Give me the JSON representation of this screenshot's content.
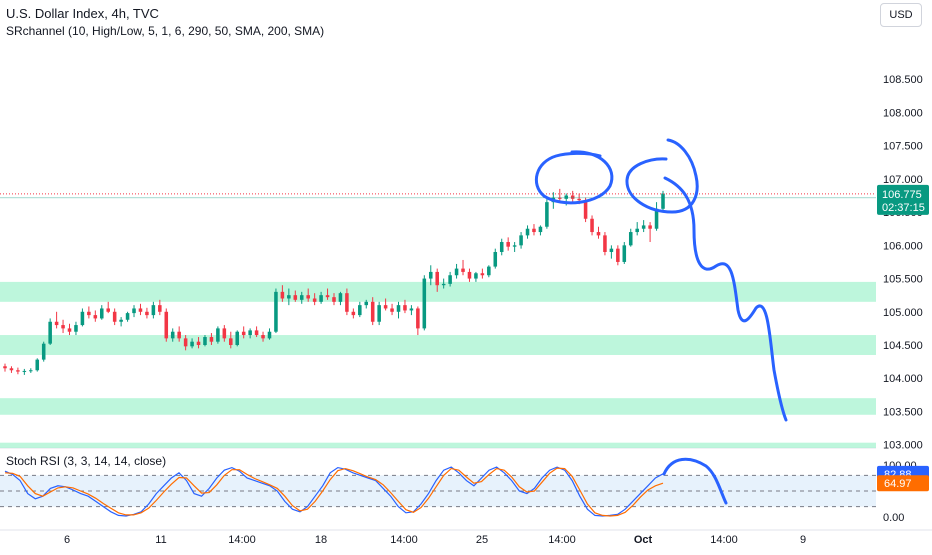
{
  "header": {
    "title": "U.S. Dollar Index, 4h, TVC",
    "indicator": "SRchannel (10, High/Low, 5, 1, 6, 290, 50, SMA, 200, SMA)",
    "currency": "USD"
  },
  "colors": {
    "up": "#089981",
    "down": "#f23645",
    "sr_zone": "#a7f3d0",
    "drawing": "#2962ff",
    "k_line": "#2962ff",
    "d_line": "#ff6d00",
    "stoch_band": "#e1effb"
  },
  "price_label": {
    "value": "106.775",
    "countdown": "02:37:15"
  },
  "stoch_labels": {
    "k": "82.88",
    "d": "64.97"
  },
  "chart_data": [
    {
      "type": "candlestick",
      "title": "U.S. Dollar Index, 4h, TVC",
      "ylim": [
        102.95,
        109.0
      ],
      "y_ticks": [
        "108.500",
        "108.000",
        "107.500",
        "107.000",
        "106.500",
        "106.000",
        "105.500",
        "105.000",
        "104.500",
        "104.000",
        "103.500",
        "103.000"
      ],
      "x_ticks": [
        "6",
        "11",
        "14:00",
        "18",
        "14:00",
        "25",
        "14:00",
        "Oct",
        "14:00",
        "9"
      ],
      "last_price": 106.775,
      "sr_zones": [
        [
          105.15,
          105.45
        ],
        [
          104.35,
          104.65
        ],
        [
          103.45,
          103.7
        ],
        [
          102.95,
          103.03
        ]
      ],
      "ohlc": [
        [
          104.18,
          104.22,
          104.1,
          104.15
        ],
        [
          104.15,
          104.18,
          104.08,
          104.12
        ],
        [
          104.12,
          104.16,
          104.06,
          104.1
        ],
        [
          104.1,
          104.14,
          104.05,
          104.11
        ],
        [
          104.11,
          104.15,
          104.08,
          104.12
        ],
        [
          104.12,
          104.3,
          104.1,
          104.28
        ],
        [
          104.28,
          104.55,
          104.25,
          104.52
        ],
        [
          104.52,
          104.9,
          104.5,
          104.85
        ],
        [
          104.85,
          105.0,
          104.75,
          104.8
        ],
        [
          104.8,
          104.88,
          104.68,
          104.75
        ],
        [
          104.75,
          104.82,
          104.65,
          104.7
        ],
        [
          104.7,
          104.85,
          104.65,
          104.8
        ],
        [
          104.8,
          105.05,
          104.78,
          105.0
        ],
        [
          105.0,
          105.08,
          104.9,
          104.95
        ],
        [
          104.95,
          105.02,
          104.85,
          104.9
        ],
        [
          104.9,
          105.1,
          104.88,
          105.05
        ],
        [
          105.05,
          105.15,
          104.98,
          105.0
        ],
        [
          105.0,
          105.05,
          104.8,
          104.85
        ],
        [
          104.85,
          104.92,
          104.78,
          104.88
        ],
        [
          104.88,
          105.0,
          104.85,
          104.98
        ],
        [
          104.98,
          105.1,
          104.92,
          105.05
        ],
        [
          105.05,
          105.12,
          104.95,
          105.0
        ],
        [
          105.0,
          105.06,
          104.9,
          104.95
        ],
        [
          104.95,
          105.15,
          104.9,
          105.1
        ],
        [
          105.1,
          105.18,
          104.95,
          105.0
        ],
        [
          105.0,
          105.05,
          104.55,
          104.6
        ],
        [
          104.6,
          104.75,
          104.55,
          104.7
        ],
        [
          104.7,
          104.78,
          104.55,
          104.6
        ],
        [
          104.6,
          104.65,
          104.42,
          104.48
        ],
        [
          104.48,
          104.6,
          104.45,
          104.55
        ],
        [
          104.55,
          104.62,
          104.45,
          104.5
        ],
        [
          104.5,
          104.65,
          104.48,
          104.62
        ],
        [
          104.62,
          104.68,
          104.5,
          104.55
        ],
        [
          104.55,
          104.78,
          104.52,
          104.75
        ],
        [
          104.75,
          104.8,
          104.55,
          104.6
        ],
        [
          104.6,
          104.7,
          104.45,
          104.5
        ],
        [
          104.5,
          104.72,
          104.48,
          104.7
        ],
        [
          104.7,
          104.78,
          104.6,
          104.65
        ],
        [
          104.65,
          104.75,
          104.6,
          104.72
        ],
        [
          104.72,
          104.78,
          104.62,
          104.65
        ],
        [
          104.65,
          104.7,
          104.55,
          104.6
        ],
        [
          104.6,
          104.75,
          104.58,
          104.7
        ],
        [
          104.7,
          105.35,
          104.68,
          105.3
        ],
        [
          105.3,
          105.4,
          105.15,
          105.2
        ],
        [
          105.2,
          105.35,
          105.1,
          105.25
        ],
        [
          105.25,
          105.32,
          105.15,
          105.18
        ],
        [
          105.18,
          105.3,
          105.12,
          105.25
        ],
        [
          105.25,
          105.35,
          105.15,
          105.2
        ],
        [
          105.2,
          105.28,
          105.1,
          105.15
        ],
        [
          105.15,
          105.3,
          105.12,
          105.25
        ],
        [
          105.25,
          105.35,
          105.18,
          105.22
        ],
        [
          105.22,
          105.28,
          105.1,
          105.15
        ],
        [
          105.15,
          105.3,
          105.1,
          105.28
        ],
        [
          105.28,
          105.35,
          104.95,
          105.0
        ],
        [
          105.0,
          105.05,
          104.9,
          104.95
        ],
        [
          104.95,
          105.15,
          104.92,
          105.1
        ],
        [
          105.1,
          105.18,
          105.05,
          105.15
        ],
        [
          105.15,
          105.22,
          104.8,
          104.85
        ],
        [
          104.85,
          105.15,
          104.8,
          105.1
        ],
        [
          105.1,
          105.2,
          105.02,
          105.05
        ],
        [
          105.05,
          105.12,
          104.95,
          105.0
        ],
        [
          105.0,
          105.15,
          104.9,
          105.1
        ],
        [
          105.1,
          105.18,
          104.98,
          105.02
        ],
        [
          105.02,
          105.1,
          104.95,
          105.05
        ],
        [
          105.05,
          105.08,
          104.65,
          104.75
        ],
        [
          104.75,
          105.55,
          104.72,
          105.5
        ],
        [
          105.5,
          105.7,
          105.4,
          105.6
        ],
        [
          105.6,
          105.65,
          105.3,
          105.4
        ],
        [
          105.4,
          105.5,
          105.35,
          105.42
        ],
        [
          105.42,
          105.6,
          105.38,
          105.55
        ],
        [
          105.55,
          105.72,
          105.5,
          105.65
        ],
        [
          105.65,
          105.78,
          105.55,
          105.6
        ],
        [
          105.6,
          105.65,
          105.45,
          105.5
        ],
        [
          105.5,
          105.6,
          105.45,
          105.58
        ],
        [
          105.58,
          105.65,
          105.5,
          105.55
        ],
        [
          105.55,
          105.7,
          105.52,
          105.68
        ],
        [
          105.68,
          105.95,
          105.65,
          105.9
        ],
        [
          105.9,
          106.1,
          105.85,
          106.05
        ],
        [
          106.05,
          106.12,
          105.92,
          105.98
        ],
        [
          105.98,
          106.05,
          105.9,
          106.0
        ],
        [
          106.0,
          106.2,
          105.95,
          106.15
        ],
        [
          106.15,
          106.3,
          106.1,
          106.25
        ],
        [
          106.25,
          106.32,
          106.15,
          106.2
        ],
        [
          106.2,
          106.3,
          106.15,
          106.28
        ],
        [
          106.28,
          106.7,
          106.25,
          106.65
        ],
        [
          106.65,
          106.8,
          106.55,
          106.72
        ],
        [
          106.72,
          106.85,
          106.65,
          106.7
        ],
        [
          106.7,
          106.78,
          106.6,
          106.75
        ],
        [
          106.75,
          106.82,
          106.65,
          106.7
        ],
        [
          106.7,
          106.78,
          106.62,
          106.68
        ],
        [
          106.68,
          106.72,
          106.35,
          106.4
        ],
        [
          106.4,
          106.45,
          106.15,
          106.2
        ],
        [
          106.2,
          106.28,
          106.1,
          106.15
        ],
        [
          106.15,
          106.2,
          105.85,
          105.9
        ],
        [
          105.9,
          106.0,
          105.8,
          105.95
        ],
        [
          105.95,
          106.0,
          105.7,
          105.75
        ],
        [
          105.75,
          106.05,
          105.72,
          106.0
        ],
        [
          106.0,
          106.25,
          105.98,
          106.2
        ],
        [
          106.2,
          106.35,
          106.15,
          106.25
        ],
        [
          106.25,
          106.38,
          106.2,
          106.3
        ],
        [
          106.3,
          106.35,
          106.05,
          106.25
        ],
        [
          106.25,
          106.65,
          106.22,
          106.55
        ],
        [
          106.55,
          106.82,
          106.5,
          106.78
        ]
      ]
    },
    {
      "type": "line",
      "title": "Stoch RSI (3, 3, 14, 14, close)",
      "ylim": [
        -5,
        105
      ],
      "y_ticks": [
        "100.00",
        "80.00",
        "0.00"
      ],
      "band": [
        20,
        80
      ],
      "series": [
        {
          "values": [
            88,
            82,
            70,
            45,
            35,
            40,
            55,
            60,
            58,
            52,
            45,
            40,
            30,
            20,
            10,
            3,
            2,
            5,
            10,
            25,
            45,
            60,
            75,
            85,
            70,
            45,
            40,
            55,
            75,
            90,
            95,
            88,
            75,
            70,
            65,
            60,
            50,
            30,
            15,
            10,
            20,
            40,
            60,
            85,
            95,
            92,
            85,
            80,
            75,
            70,
            55,
            40,
            20,
            8,
            10,
            25,
            45,
            70,
            90,
            96,
            85,
            70,
            60,
            75,
            90,
            96,
            85,
            70,
            50,
            45,
            55,
            75,
            90,
            96,
            90,
            70,
            40,
            15,
            3,
            2,
            3,
            5,
            15,
            30,
            45,
            60,
            75,
            83
          ]
        },
        {
          "values": [
            85,
            84,
            78,
            60,
            45,
            40,
            48,
            56,
            58,
            56,
            50,
            44,
            36,
            26,
            17,
            8,
            4,
            4,
            8,
            17,
            32,
            48,
            63,
            76,
            75,
            60,
            46,
            47,
            62,
            80,
            91,
            91,
            82,
            74,
            68,
            62,
            55,
            40,
            22,
            12,
            15,
            30,
            50,
            72,
            89,
            93,
            89,
            83,
            77,
            72,
            62,
            47,
            30,
            14,
            9,
            18,
            36,
            58,
            80,
            93,
            90,
            77,
            65,
            68,
            82,
            93,
            90,
            77,
            58,
            48,
            50,
            67,
            84,
            94,
            93,
            78,
            52,
            25,
            8,
            3,
            2,
            3,
            9,
            22,
            38,
            52,
            60,
            65
          ]
        }
      ]
    }
  ]
}
